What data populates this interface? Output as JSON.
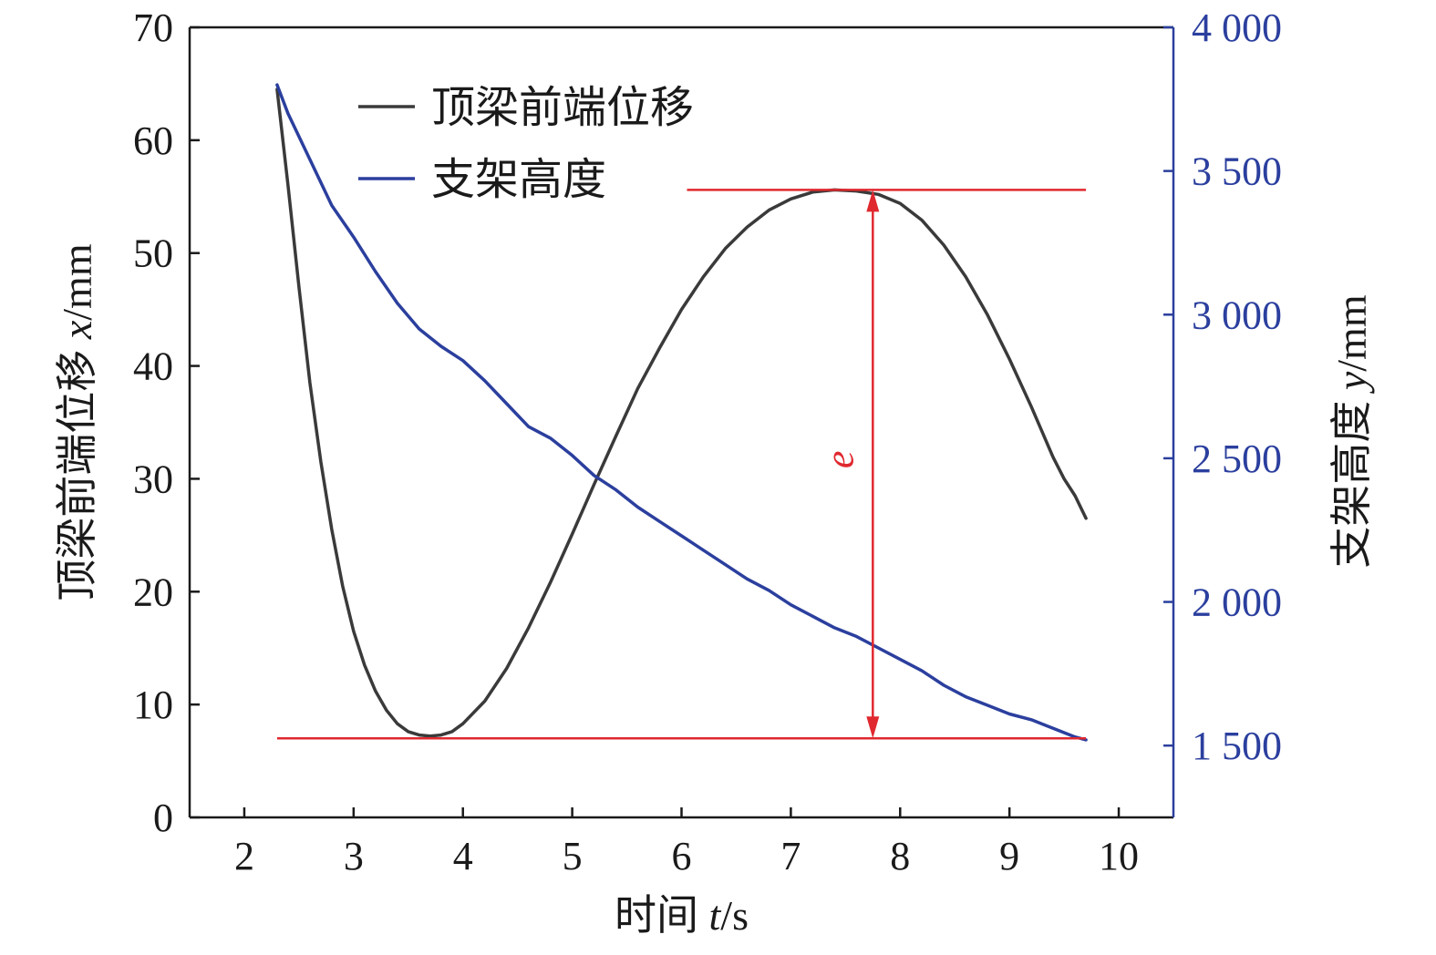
{
  "chart_data": {
    "type": "line",
    "x": {
      "label": "时间 t/s",
      "label_parts": {
        "prefix": "时间 ",
        "var": "t",
        "suffix": "/s"
      },
      "range": [
        1.5,
        10.5
      ],
      "ticks": [
        2,
        3,
        4,
        5,
        6,
        7,
        8,
        9,
        10
      ],
      "tick_labels": [
        "2",
        "3",
        "4",
        "5",
        "6",
        "7",
        "8",
        "9",
        "10"
      ]
    },
    "y_left": {
      "label": "顶梁前端位移 x/mm",
      "label_parts": {
        "prefix": "顶梁前端位移 ",
        "var": "x",
        "suffix": "/mm"
      },
      "range": [
        0,
        70
      ],
      "ticks": [
        0,
        10,
        20,
        30,
        40,
        50,
        60,
        70
      ],
      "tick_labels": [
        "0",
        "10",
        "20",
        "30",
        "40",
        "50",
        "60",
        "70"
      ]
    },
    "y_right": {
      "label": "支架高度 y/mm",
      "label_parts": {
        "prefix": "支架高度 ",
        "var": "y",
        "suffix": "/mm"
      },
      "range": [
        1250,
        4000
      ],
      "ticks": [
        1500,
        2000,
        2500,
        3000,
        3500,
        4000
      ],
      "tick_labels": [
        "1 500",
        "2 000",
        "2 500",
        "3 000",
        "3 500",
        "4 000"
      ],
      "color": "#2b3f9e"
    },
    "series": [
      {
        "name": "顶梁前端位移",
        "axis": "left",
        "color": "#3a3a3a",
        "x": [
          2.3,
          2.4,
          2.5,
          2.6,
          2.7,
          2.8,
          2.9,
          3.0,
          3.1,
          3.2,
          3.3,
          3.4,
          3.5,
          3.6,
          3.7,
          3.8,
          3.9,
          4.0,
          4.2,
          4.4,
          4.6,
          4.8,
          5.0,
          5.2,
          5.4,
          5.6,
          5.8,
          6.0,
          6.2,
          6.4,
          6.6,
          6.8,
          7.0,
          7.2,
          7.4,
          7.6,
          7.8,
          8.0,
          8.2,
          8.4,
          8.6,
          8.8,
          9.0,
          9.2,
          9.4,
          9.5,
          9.6,
          9.7
        ],
        "y": [
          64.5,
          56,
          47,
          38.5,
          31.5,
          25.5,
          20.5,
          16.5,
          13.5,
          11.2,
          9.5,
          8.3,
          7.6,
          7.3,
          7.2,
          7.3,
          7.6,
          8.3,
          10.3,
          13.2,
          16.8,
          20.8,
          25.1,
          29.5,
          33.8,
          38.0,
          41.6,
          45.0,
          47.9,
          50.4,
          52.3,
          53.8,
          54.8,
          55.4,
          55.6,
          55.5,
          55.2,
          54.4,
          52.9,
          50.7,
          47.9,
          44.5,
          40.6,
          36.4,
          31.9,
          30.0,
          28.5,
          26.5
        ]
      },
      {
        "name": "支架高度",
        "axis": "right",
        "color": "#2b3f9e",
        "x": [
          2.3,
          2.4,
          2.6,
          2.8,
          3.0,
          3.2,
          3.4,
          3.6,
          3.8,
          4.0,
          4.2,
          4.4,
          4.6,
          4.8,
          5.0,
          5.2,
          5.4,
          5.6,
          5.8,
          6.0,
          6.2,
          6.4,
          6.6,
          6.8,
          7.0,
          7.2,
          7.4,
          7.6,
          7.8,
          8.0,
          8.2,
          8.4,
          8.6,
          8.8,
          9.0,
          9.2,
          9.4,
          9.6,
          9.7
        ],
        "y": [
          3800,
          3700,
          3540,
          3380,
          3270,
          3150,
          3040,
          2950,
          2890,
          2840,
          2770,
          2690,
          2610,
          2570,
          2510,
          2440,
          2390,
          2330,
          2280,
          2230,
          2180,
          2130,
          2080,
          2040,
          1990,
          1950,
          1910,
          1880,
          1840,
          1800,
          1760,
          1710,
          1670,
          1640,
          1610,
          1590,
          1560,
          1530,
          1520
        ]
      }
    ],
    "annotations": {
      "label": "e",
      "color": "#e0282f",
      "upper_level": 55.6,
      "lower_level": 7.0,
      "upper_x_range": [
        6.05,
        9.7
      ],
      "lower_x_range": [
        2.3,
        9.7
      ],
      "arrow_x": 7.75
    },
    "legend": {
      "placement": "top-left"
    },
    "grid": false
  }
}
